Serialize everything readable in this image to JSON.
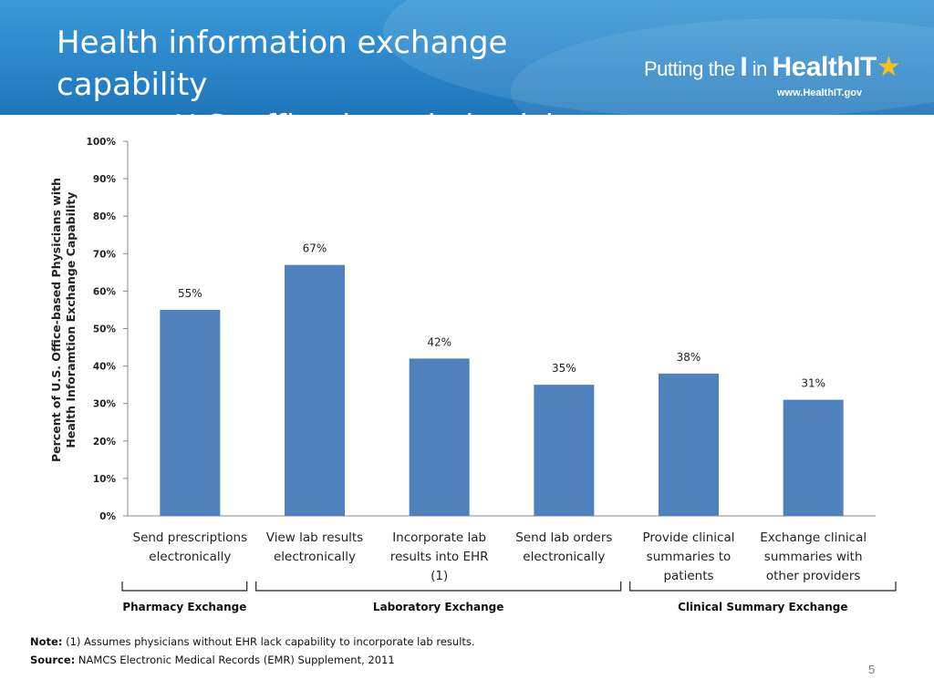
{
  "slide": {
    "title_line1": "Health information exchange capability",
    "title_line2": "among U.S. office-based physicians",
    "page_number": "5"
  },
  "logo": {
    "part1": "Putting the ",
    "part2": "I",
    "part3": " in ",
    "part4": "HealthIT",
    "url": "www.HealthIT.gov",
    "star_icon": "star-icon"
  },
  "chart_data": {
    "type": "bar",
    "ylabel_line1": "Percent of U.S. Office-based Physicians with",
    "ylabel_line2": "Health Inforamtion Exchange Capability",
    "ylim": [
      0,
      100
    ],
    "yticks": [
      "0%",
      "10%",
      "20%",
      "30%",
      "40%",
      "50%",
      "60%",
      "70%",
      "80%",
      "90%",
      "100%"
    ],
    "categories": [
      [
        "Send prescriptions",
        "electronically"
      ],
      [
        "View lab results",
        "electronically"
      ],
      [
        "Incorporate lab",
        "results into EHR",
        "(1)"
      ],
      [
        "Send lab orders",
        "electronically"
      ],
      [
        "Provide clinical",
        "summaries to",
        "patients"
      ],
      [
        "Exchange clinical",
        "summaries with",
        "other providers"
      ]
    ],
    "values": [
      55,
      67,
      42,
      35,
      38,
      31
    ],
    "data_labels": [
      "55%",
      "67%",
      "42%",
      "35%",
      "38%",
      "31%"
    ],
    "bar_color": "#4f81bd",
    "groups": [
      {
        "label": "Pharmacy Exchange",
        "from": 0,
        "to": 0
      },
      {
        "label": "Laboratory Exchange",
        "from": 1,
        "to": 3
      },
      {
        "label": "Clinical Summary Exchange",
        "from": 4,
        "to": 5
      }
    ],
    "grid": false
  },
  "notes": {
    "note_label": "Note:",
    "note_text": " (1) Assumes physicians without EHR lack capability to incorporate lab results.",
    "source_label": "Source:",
    "source_text": " NAMCS Electronic Medical Records (EMR) Supplement,  2011"
  }
}
